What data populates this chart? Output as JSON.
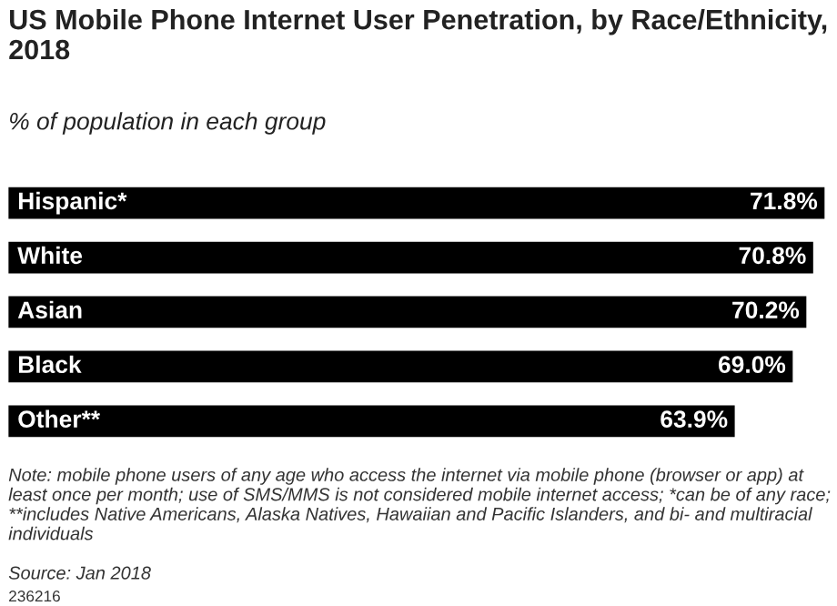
{
  "chart_data": {
    "type": "bar",
    "orientation": "horizontal",
    "title": "US Mobile Phone Internet User Penetration, by Race/Ethnicity, 2018",
    "subtitle": "% of population in each group",
    "categories": [
      "Hispanic*",
      "White",
      "Asian",
      "Black",
      "Other**"
    ],
    "values": [
      71.8,
      70.8,
      70.2,
      69.0,
      63.9
    ],
    "value_labels": [
      "71.8%",
      "70.8%",
      "70.2%",
      "69.0%",
      "63.9%"
    ],
    "color": "#000000",
    "annotations": [
      "Note: mobile phone users of any age who access the internet via mobile phone (browser or app) at least once per month; use of SMS/MMS is not considered mobile internet access; *can be of any race; **includes Native Americans, Alaska Natives, Hawaiian and Pacific Islanders, and bi- and multiracial individuals",
      "Source: Jan 2018",
      "236216"
    ]
  }
}
